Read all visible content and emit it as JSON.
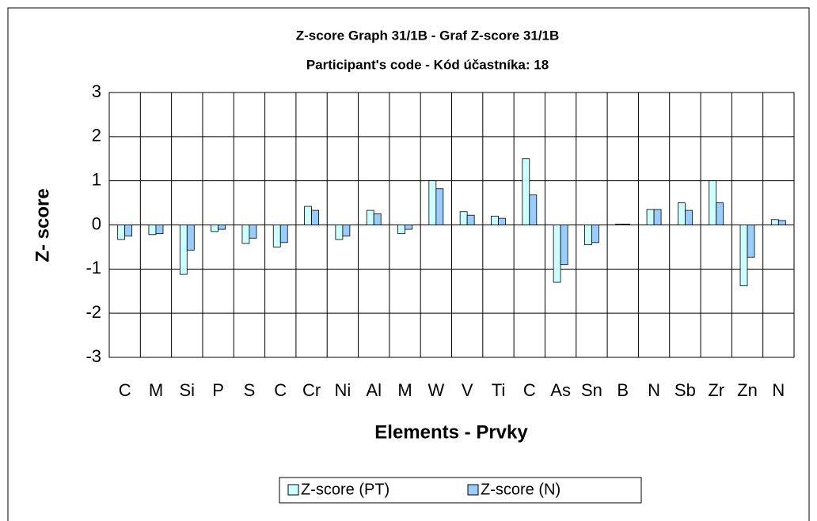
{
  "chart_data": {
    "type": "bar",
    "title": "Z-score Graph 31/1B - Graf Z-score 31/1B",
    "subtitle": "Participant's code - Kód účastníka:  18",
    "x_label": "Elements - Prvky",
    "y_label": "Z- score",
    "categories": [
      "C",
      "M",
      "Si",
      "P",
      "S",
      "C",
      "Cr",
      "Ni",
      "Al",
      "M",
      "W",
      "V",
      "Ti",
      "C",
      "As",
      "Sn",
      "B",
      "N",
      "Sb",
      "Zr",
      "Zn",
      "N"
    ],
    "series": [
      {
        "name": "Z-score (PT)",
        "color": "#ccffff",
        "values": [
          -0.33,
          -0.22,
          -1.12,
          -0.15,
          -0.42,
          -0.5,
          0.42,
          -0.33,
          0.33,
          -0.2,
          1.0,
          0.3,
          0.2,
          1.5,
          -1.3,
          -0.45,
          0.02,
          0.35,
          0.5,
          1.0,
          -1.38,
          0.12
        ]
      },
      {
        "name": "Z-score (N)",
        "color": "#99ccff",
        "values": [
          -0.25,
          -0.2,
          -0.57,
          -0.1,
          -0.3,
          -0.4,
          0.33,
          -0.25,
          0.25,
          -0.1,
          0.82,
          0.22,
          0.15,
          0.68,
          -0.9,
          -0.4,
          0.02,
          0.35,
          0.33,
          0.5,
          -0.73,
          0.1
        ]
      }
    ],
    "ylim": [
      -3,
      3
    ],
    "yticks": [
      -3,
      -2,
      -1,
      0,
      1,
      2,
      3
    ],
    "grid": true,
    "legend": "bottom"
  }
}
